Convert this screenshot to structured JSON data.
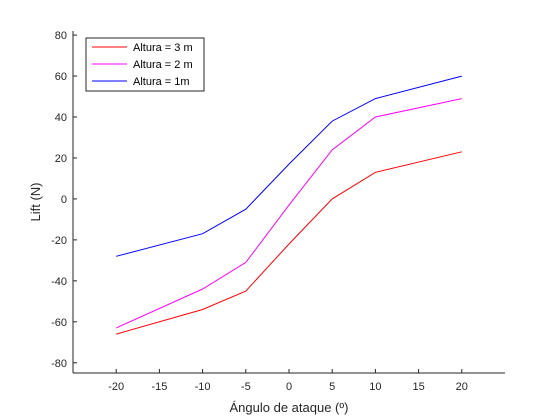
{
  "chart_data": {
    "type": "line",
    "title": "",
    "xlabel": "Ángulo de ataque (º)",
    "ylabel": "Lift (N)",
    "xlim": [
      -25,
      25
    ],
    "ylim": [
      -85,
      82
    ],
    "xticks": [
      -20,
      -15,
      -10,
      -5,
      0,
      5,
      10,
      15,
      20
    ],
    "yticks": [
      -80,
      -60,
      -40,
      -20,
      0,
      20,
      40,
      60,
      80
    ],
    "grid": false,
    "legend_position": "top-left",
    "x": [
      -20,
      -10,
      -5,
      0,
      5,
      10,
      20
    ],
    "series": [
      {
        "name": "Altura = 3 m",
        "color": "#ff0000",
        "values": [
          -66,
          -54,
          -45,
          -22,
          0,
          13,
          23
        ]
      },
      {
        "name": "Altura = 2 m",
        "color": "#ff00ff",
        "values": [
          -63,
          -44,
          -31,
          -3,
          24,
          40,
          49
        ]
      },
      {
        "name": "Altura = 1m",
        "color": "#0000ff",
        "values": [
          -28,
          -17,
          -5,
          17,
          38,
          49,
          60
        ]
      }
    ]
  }
}
